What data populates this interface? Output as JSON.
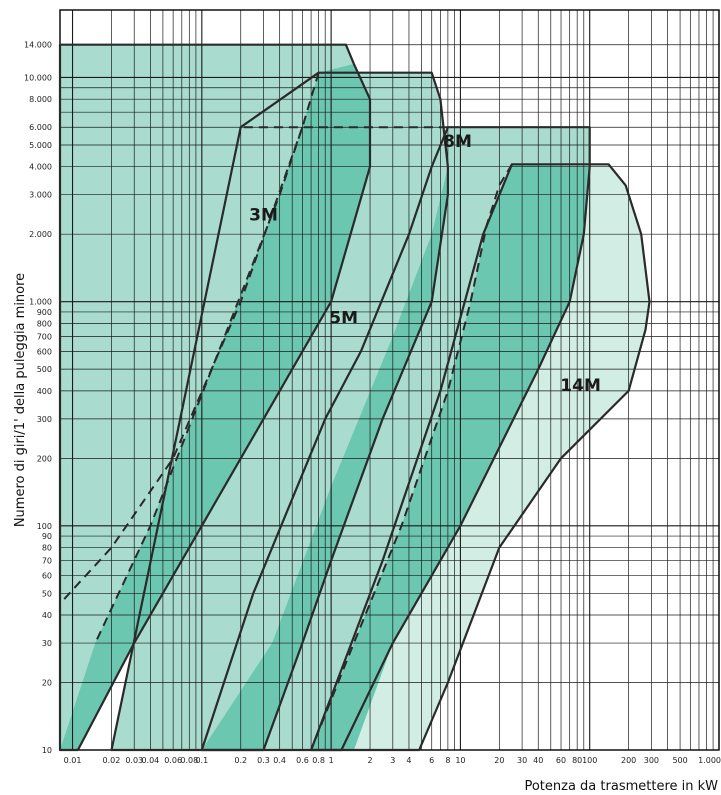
{
  "chart_data": {
    "type": "area",
    "xlabel": "Potenza da trasmettere in kW",
    "ylabel": "Numero di giri/1' della puleggia minore",
    "xscale": "log",
    "yscale": "log",
    "xlim": [
      0.008,
      1000
    ],
    "ylim": [
      10,
      20000
    ],
    "x_tick_labels": [
      {
        "v": 0.01,
        "t": "0.01"
      },
      {
        "v": 0.02,
        "t": "0.02"
      },
      {
        "v": 0.03,
        "t": "0.03"
      },
      {
        "v": 0.04,
        "t": "0.04"
      },
      {
        "v": 0.06,
        "t": "0.06"
      },
      {
        "v": 0.08,
        "t": "0.08"
      },
      {
        "v": 0.1,
        "t": "0.1"
      },
      {
        "v": 0.2,
        "t": "0.2"
      },
      {
        "v": 0.3,
        "t": "0.3"
      },
      {
        "v": 0.4,
        "t": "0.4"
      },
      {
        "v": 0.6,
        "t": "0.6"
      },
      {
        "v": 0.8,
        "t": "0.8"
      },
      {
        "v": 1,
        "t": "1"
      },
      {
        "v": 2,
        "t": "2"
      },
      {
        "v": 3,
        "t": "3"
      },
      {
        "v": 4,
        "t": "4"
      },
      {
        "v": 6,
        "t": "6"
      },
      {
        "v": 8,
        "t": "8"
      },
      {
        "v": 10,
        "t": "10"
      },
      {
        "v": 20,
        "t": "20"
      },
      {
        "v": 30,
        "t": "30"
      },
      {
        "v": 40,
        "t": "40"
      },
      {
        "v": 60,
        "t": "60"
      },
      {
        "v": 80,
        "t": "80"
      },
      {
        "v": 100,
        "t": "100"
      },
      {
        "v": 200,
        "t": "200"
      },
      {
        "v": 300,
        "t": "300"
      },
      {
        "v": 500,
        "t": "500"
      },
      {
        "v": 1000,
        "t": "1.000"
      }
    ],
    "x_grid": [
      0.01,
      0.02,
      0.03,
      0.04,
      0.05,
      0.06,
      0.07,
      0.08,
      0.09,
      0.1,
      0.2,
      0.3,
      0.4,
      0.5,
      0.6,
      0.7,
      0.8,
      0.9,
      1,
      2,
      3,
      4,
      5,
      6,
      7,
      8,
      9,
      10,
      20,
      30,
      40,
      50,
      60,
      70,
      80,
      90,
      100,
      200,
      300,
      400,
      500,
      600,
      700,
      800,
      900,
      1000
    ],
    "y_tick_labels": [
      {
        "v": 10,
        "t": "10"
      },
      {
        "v": 20,
        "t": "20"
      },
      {
        "v": 30,
        "t": "30"
      },
      {
        "v": 40,
        "t": "40"
      },
      {
        "v": 50,
        "t": "50"
      },
      {
        "v": 60,
        "t": "60"
      },
      {
        "v": 70,
        "t": "70"
      },
      {
        "v": 80,
        "t": "80"
      },
      {
        "v": 90,
        "t": "90"
      },
      {
        "v": 100,
        "t": "100"
      },
      {
        "v": 200,
        "t": "200"
      },
      {
        "v": 300,
        "t": "300"
      },
      {
        "v": 400,
        "t": "400"
      },
      {
        "v": 500,
        "t": "500"
      },
      {
        "v": 600,
        "t": "600"
      },
      {
        "v": 700,
        "t": "700"
      },
      {
        "v": 800,
        "t": "800"
      },
      {
        "v": 900,
        "t": "900"
      },
      {
        "v": 1000,
        "t": "1.000"
      },
      {
        "v": 2000,
        "t": "2.000"
      },
      {
        "v": 3000,
        "t": "3.000"
      },
      {
        "v": 4000,
        "t": "4.000"
      },
      {
        "v": 5000,
        "t": "5.000"
      },
      {
        "v": 6000,
        "t": "6.000"
      },
      {
        "v": 8000,
        "t": "8.000"
      },
      {
        "v": 10000,
        "t": "10.000"
      },
      {
        "v": 14000,
        "t": "14.000"
      }
    ],
    "y_grid": [
      10,
      20,
      30,
      40,
      50,
      60,
      70,
      80,
      90,
      100,
      200,
      300,
      400,
      500,
      600,
      700,
      800,
      900,
      1000,
      2000,
      3000,
      4000,
      5000,
      6000,
      7000,
      8000,
      9000,
      10000,
      14000
    ],
    "colors": {
      "dark": "#6cc7b1",
      "medium": "#a9dcce",
      "light": "#d1ede4",
      "grid": "#1a1a1a",
      "outline": "#2a2a2a"
    },
    "series": [
      {
        "name": "14M",
        "fill": "light",
        "label_at": [
          85,
          400
        ],
        "points": [
          [
            4.8,
            10
          ],
          [
            8,
            20
          ],
          [
            20,
            80
          ],
          [
            60,
            200
          ],
          [
            200,
            400
          ],
          [
            270,
            750
          ],
          [
            290,
            1000
          ],
          [
            250,
            2000
          ],
          [
            190,
            3300
          ],
          [
            140,
            4100
          ],
          [
            25,
            4100
          ],
          [
            15,
            2000
          ],
          [
            7,
            400
          ],
          [
            2.5,
            70
          ],
          [
            0.7,
            10
          ]
        ],
        "dashed": [
          [
            25,
            4100
          ],
          [
            20,
            3300
          ],
          [
            16,
            2200
          ],
          [
            12,
            1000
          ],
          [
            8,
            400
          ],
          [
            3.5,
            100
          ],
          [
            1.5,
            30
          ],
          [
            0.7,
            10
          ]
        ]
      },
      {
        "name": "8M",
        "fill": "medium",
        "label_at": [
          9.5,
          4900
        ],
        "points": [
          [
            1.2,
            10
          ],
          [
            3,
            30
          ],
          [
            10,
            100
          ],
          [
            40,
            500
          ],
          [
            70,
            1000
          ],
          [
            90,
            2000
          ],
          [
            100,
            4000
          ],
          [
            100,
            6000
          ],
          [
            8,
            6000
          ],
          [
            6,
            4000
          ],
          [
            4,
            2000
          ],
          [
            1.7,
            600
          ],
          [
            0.9,
            300
          ],
          [
            0.25,
            50
          ],
          [
            0.1,
            10
          ]
        ],
        "dashed": [
          [
            8,
            6000
          ],
          [
            0.2,
            6000
          ]
        ]
      },
      {
        "name": "5M",
        "fill": "medium",
        "label_at": [
          1.25,
          800
        ],
        "points": [
          [
            0.3,
            10
          ],
          [
            0.6,
            30
          ],
          [
            1,
            70
          ],
          [
            2.5,
            300
          ],
          [
            6,
            1000
          ],
          [
            8,
            3000
          ],
          [
            8,
            4000
          ],
          [
            7,
            8000
          ],
          [
            6,
            10500
          ],
          [
            0.8,
            10500
          ],
          [
            0.2,
            6000
          ],
          [
            0.02,
            10
          ]
        ],
        "dashed": [
          [
            0.8,
            10500
          ],
          [
            0.6,
            6000
          ],
          [
            0.4,
            3000
          ],
          [
            0.15,
            700
          ],
          [
            0.04,
            100
          ],
          [
            0.015,
            30
          ]
        ]
      },
      {
        "name": "3M",
        "fill": "medium",
        "label_at": [
          0.3,
          2300
        ],
        "points": [
          [
            0.011,
            10
          ],
          [
            0.03,
            30
          ],
          [
            0.1,
            100
          ],
          [
            0.4,
            400
          ],
          [
            1,
            1000
          ],
          [
            2,
            4000
          ],
          [
            2,
            6000
          ],
          [
            2,
            8000
          ],
          [
            1.5,
            11500
          ],
          [
            1.3,
            14000
          ],
          [
            0.008,
            14000
          ],
          [
            0.008,
            10
          ]
        ],
        "dashed": [
          [
            0.6,
            6000
          ],
          [
            0.2,
            1000
          ],
          [
            0.06,
            200
          ],
          [
            0.02,
            80
          ],
          [
            0.008,
            45
          ]
        ]
      }
    ],
    "dark_bands": [
      {
        "between": "3M",
        "points": [
          [
            0.011,
            10
          ],
          [
            0.03,
            30
          ],
          [
            0.1,
            100
          ],
          [
            0.4,
            400
          ],
          [
            1,
            1000
          ],
          [
            2,
            4000
          ],
          [
            2,
            8000
          ],
          [
            1.5,
            11500
          ],
          [
            0.8,
            10500
          ],
          [
            0.6,
            6000
          ],
          [
            0.4,
            3000
          ],
          [
            0.15,
            700
          ],
          [
            0.04,
            100
          ],
          [
            0.015,
            30
          ],
          [
            0.008,
            10
          ]
        ]
      },
      {
        "between": "5M",
        "points": [
          [
            0.3,
            10
          ],
          [
            0.6,
            30
          ],
          [
            1,
            70
          ],
          [
            2.5,
            300
          ],
          [
            6,
            1000
          ],
          [
            8,
            3000
          ],
          [
            8,
            4000
          ],
          [
            6,
            2000
          ],
          [
            3,
            700
          ],
          [
            1,
            150
          ],
          [
            0.35,
            30
          ],
          [
            0.1,
            10
          ]
        ]
      },
      {
        "between": "8M",
        "points": [
          [
            1.5,
            10
          ],
          [
            3,
            30
          ],
          [
            10,
            100
          ],
          [
            40,
            500
          ],
          [
            70,
            1000
          ],
          [
            90,
            2000
          ],
          [
            100,
            4000
          ],
          [
            25,
            4100
          ],
          [
            16,
            2200
          ],
          [
            12,
            1000
          ],
          [
            8,
            400
          ],
          [
            3.5,
            100
          ],
          [
            1.5,
            30
          ],
          [
            0.7,
            10
          ]
        ]
      }
    ],
    "labels": [
      "3M",
      "5M",
      "8M",
      "14M"
    ]
  }
}
